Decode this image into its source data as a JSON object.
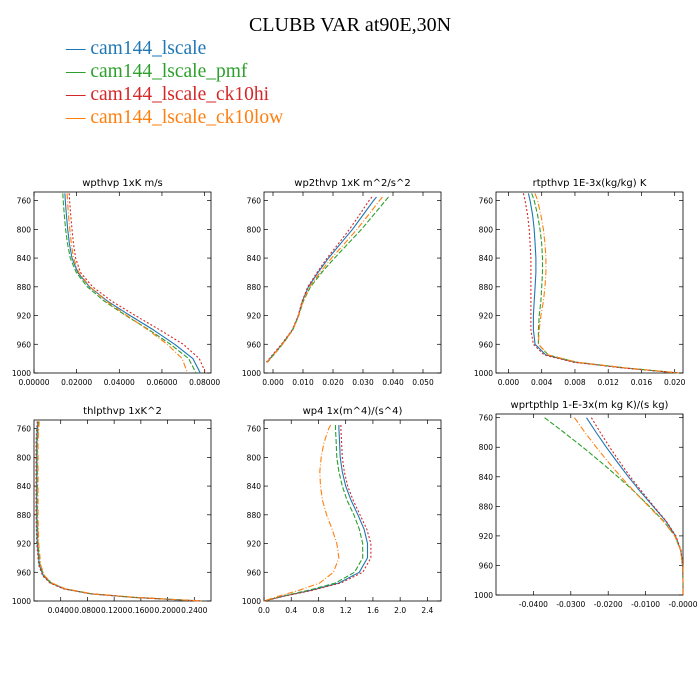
{
  "figure": {
    "title": "CLUBB VAR at90E,30N"
  },
  "colors": {
    "frame": "#000000",
    "ticks": "#000000"
  },
  "chart_data": [
    {
      "type": "line",
      "title": "wpthvp  1xK m/s",
      "xlim": [
        0,
        0.083
      ],
      "ylim": [
        1000,
        748
      ],
      "xticks": [
        "0.00000",
        "0.02000",
        "0.04000",
        "0.06000",
        "0.08000"
      ],
      "xtick_values": [
        0,
        0.02,
        0.04,
        0.06,
        0.08
      ],
      "yticks": [
        "760",
        "800",
        "840",
        "880",
        "920",
        "960",
        "1000"
      ],
      "ytick_values": [
        760,
        800,
        840,
        880,
        920,
        960,
        1000
      ],
      "y": [
        750,
        760,
        780,
        800,
        820,
        840,
        860,
        880,
        900,
        920,
        940,
        960,
        980,
        1000
      ],
      "series": [
        {
          "name": "cam144_lscale",
          "color": "#1f77b4",
          "values": [
            0.0145,
            0.0147,
            0.0152,
            0.0158,
            0.0166,
            0.0178,
            0.0205,
            0.026,
            0.0345,
            0.045,
            0.056,
            0.066,
            0.0745,
            0.078
          ]
        },
        {
          "name": "cam144_lscale_pmf",
          "color": "#2ca02c",
          "values": [
            0.0135,
            0.0137,
            0.0142,
            0.0148,
            0.0157,
            0.017,
            0.0198,
            0.025,
            0.033,
            0.043,
            0.054,
            0.064,
            0.0725,
            0.076
          ]
        },
        {
          "name": "cam144_lscale_ck10hi",
          "color": "#d62728",
          "values": [
            0.0165,
            0.0167,
            0.0172,
            0.0178,
            0.0185,
            0.0195,
            0.0218,
            0.0275,
            0.0365,
            0.0475,
            0.059,
            0.07,
            0.0775,
            0.0805
          ]
        },
        {
          "name": "cam144_lscale_ck10low",
          "color": "#ff7f0e",
          "values": [
            0.0155,
            0.0157,
            0.0162,
            0.0168,
            0.0175,
            0.0185,
            0.021,
            0.0262,
            0.034,
            0.0435,
            0.0535,
            0.0625,
            0.0695,
            0.072
          ]
        }
      ]
    },
    {
      "type": "line",
      "title": "wp2thvp  1xK m^2/s^2",
      "xlim": [
        -0.003,
        0.056
      ],
      "ylim": [
        1000,
        748
      ],
      "xticks": [
        "0.000",
        "0.010",
        "0.020",
        "0.030",
        "0.040",
        "0.050"
      ],
      "xtick_values": [
        0,
        0.01,
        0.02,
        0.03,
        0.04,
        0.05
      ],
      "yticks": [
        "760",
        "800",
        "840",
        "880",
        "920",
        "960",
        "1000"
      ],
      "ytick_values": [
        760,
        800,
        840,
        880,
        920,
        960,
        1000
      ],
      "y": [
        755,
        760,
        780,
        800,
        820,
        840,
        860,
        880,
        900,
        920,
        940,
        960,
        975,
        985
      ],
      "series": [
        {
          "name": "cam144_lscale",
          "color": "#1f77b4",
          "values": [
            0.0345,
            0.0335,
            0.03,
            0.0265,
            0.0225,
            0.0185,
            0.015,
            0.0118,
            0.0098,
            0.0085,
            0.0065,
            0.003,
            0.0,
            -0.002
          ]
        },
        {
          "name": "cam144_lscale_pmf",
          "color": "#2ca02c",
          "values": [
            0.0385,
            0.0375,
            0.0335,
            0.0295,
            0.025,
            0.0205,
            0.0163,
            0.0125,
            0.0101,
            0.0086,
            0.0066,
            0.0032,
            0.0002,
            -0.0018
          ]
        },
        {
          "name": "cam144_lscale_ck10hi",
          "color": "#d62728",
          "values": [
            0.033,
            0.032,
            0.0288,
            0.0255,
            0.0218,
            0.018,
            0.0147,
            0.0116,
            0.0097,
            0.0084,
            0.0064,
            0.0028,
            -0.0002,
            -0.0022
          ]
        },
        {
          "name": "cam144_lscale_ck10low",
          "color": "#ff7f0e",
          "values": [
            0.0365,
            0.0355,
            0.0318,
            0.028,
            0.0238,
            0.0195,
            0.0157,
            0.0122,
            0.01,
            0.0086,
            0.0066,
            0.0031,
            0.0001,
            -0.0019
          ]
        }
      ]
    },
    {
      "type": "line",
      "title": "rtpthvp  1E-3x(kg/kg) K",
      "xlim": [
        -0.0015,
        0.021
      ],
      "ylim": [
        1000,
        748
      ],
      "xticks": [
        "0.000",
        "0.004",
        "0.008",
        "0.012",
        "0.016",
        "0.020"
      ],
      "xtick_values": [
        0,
        0.004,
        0.008,
        0.012,
        0.016,
        0.02
      ],
      "yticks": [
        "760",
        "800",
        "840",
        "880",
        "920",
        "960",
        "1000"
      ],
      "ytick_values": [
        760,
        800,
        840,
        880,
        920,
        960,
        1000
      ],
      "y": [
        750,
        760,
        780,
        800,
        820,
        840,
        860,
        880,
        900,
        920,
        940,
        960,
        975,
        985,
        993,
        1000
      ],
      "series": [
        {
          "name": "cam144_lscale",
          "color": "#1f77b4",
          "values": [
            0.0024,
            0.0026,
            0.0029,
            0.0031,
            0.0032,
            0.0033,
            0.0033,
            0.0032,
            0.0031,
            0.003,
            0.003,
            0.0032,
            0.0045,
            0.008,
            0.014,
            0.0205
          ]
        },
        {
          "name": "cam144_lscale_pmf",
          "color": "#2ca02c",
          "values": [
            0.0028,
            0.0031,
            0.0035,
            0.0038,
            0.004,
            0.0041,
            0.0041,
            0.004,
            0.0039,
            0.0037,
            0.0036,
            0.0036,
            0.0048,
            0.0082,
            0.0142,
            0.0205
          ]
        },
        {
          "name": "cam144_lscale_ck10hi",
          "color": "#d62728",
          "values": [
            0.0018,
            0.002,
            0.0023,
            0.0025,
            0.0026,
            0.0027,
            0.0027,
            0.0027,
            0.0027,
            0.0027,
            0.0027,
            0.003,
            0.0043,
            0.0078,
            0.0138,
            0.0205
          ]
        },
        {
          "name": "cam144_lscale_ck10low",
          "color": "#ff7f0e",
          "values": [
            0.0032,
            0.0035,
            0.0039,
            0.0042,
            0.0044,
            0.0045,
            0.0045,
            0.0044,
            0.0042,
            0.0039,
            0.0037,
            0.0036,
            0.0048,
            0.0082,
            0.0142,
            0.0205
          ]
        }
      ]
    },
    {
      "type": "line",
      "title": "thlpthvp  1xK^2",
      "xlim": [
        0,
        0.265
      ],
      "ylim": [
        1000,
        748
      ],
      "xticks": [
        "0.0400",
        "0.0800",
        "0.1200",
        "0.1600",
        "0.2000",
        "0.2400"
      ],
      "xtick_values": [
        0.04,
        0.08,
        0.12,
        0.16,
        0.2,
        0.24
      ],
      "yticks": [
        "760",
        "800",
        "840",
        "880",
        "920",
        "960",
        "1000"
      ],
      "ytick_values": [
        760,
        800,
        840,
        880,
        920,
        960,
        1000
      ],
      "y": [
        750,
        760,
        780,
        800,
        840,
        880,
        920,
        950,
        965,
        975,
        983,
        990,
        995,
        1000
      ],
      "series": [
        {
          "name": "cam144_lscale",
          "color": "#1f77b4",
          "values": [
            0.006,
            0.005,
            0.004,
            0.004,
            0.004,
            0.004,
            0.005,
            0.008,
            0.014,
            0.025,
            0.045,
            0.085,
            0.15,
            0.25
          ]
        },
        {
          "name": "cam144_lscale_pmf",
          "color": "#2ca02c",
          "values": [
            0.007,
            0.006,
            0.005,
            0.005,
            0.005,
            0.005,
            0.006,
            0.009,
            0.015,
            0.026,
            0.046,
            0.086,
            0.151,
            0.251
          ]
        },
        {
          "name": "cam144_lscale_ck10hi",
          "color": "#d62728",
          "values": [
            0.005,
            0.004,
            0.003,
            0.003,
            0.003,
            0.003,
            0.004,
            0.007,
            0.013,
            0.024,
            0.044,
            0.084,
            0.149,
            0.249
          ]
        },
        {
          "name": "cam144_lscale_ck10low",
          "color": "#ff7f0e",
          "values": [
            0.008,
            0.007,
            0.006,
            0.006,
            0.006,
            0.006,
            0.007,
            0.01,
            0.016,
            0.027,
            0.047,
            0.087,
            0.152,
            0.252
          ]
        }
      ]
    },
    {
      "type": "line",
      "title": "wp4  1x(m^4)/(s^4)",
      "xlim": [
        0,
        2.6
      ],
      "ylim": [
        1000,
        748
      ],
      "xticks": [
        "0.0",
        "0.4",
        "0.8",
        "1.2",
        "1.6",
        "2.0",
        "2.4"
      ],
      "xtick_values": [
        0,
        0.4,
        0.8,
        1.2,
        1.6,
        2.0,
        2.4
      ],
      "yticks": [
        "760",
        "800",
        "840",
        "880",
        "920",
        "960",
        "1000"
      ],
      "ytick_values": [
        760,
        800,
        840,
        880,
        920,
        960,
        1000
      ],
      "y": [
        755,
        760,
        780,
        800,
        820,
        840,
        860,
        880,
        900,
        920,
        940,
        960,
        975,
        985,
        993,
        1000
      ],
      "series": [
        {
          "name": "cam144_lscale",
          "color": "#1f77b4",
          "values": [
            1.1,
            1.1,
            1.11,
            1.12,
            1.15,
            1.2,
            1.28,
            1.38,
            1.47,
            1.52,
            1.52,
            1.4,
            1.1,
            0.7,
            0.3,
            0.0
          ]
        },
        {
          "name": "cam144_lscale_pmf",
          "color": "#2ca02c",
          "values": [
            1.05,
            1.05,
            1.06,
            1.07,
            1.1,
            1.15,
            1.22,
            1.32,
            1.4,
            1.45,
            1.45,
            1.33,
            1.05,
            0.66,
            0.28,
            0.0
          ]
        },
        {
          "name": "cam144_lscale_ck10hi",
          "color": "#d62728",
          "values": [
            1.13,
            1.13,
            1.14,
            1.15,
            1.18,
            1.23,
            1.31,
            1.41,
            1.51,
            1.57,
            1.57,
            1.45,
            1.13,
            0.72,
            0.31,
            0.0
          ]
        },
        {
          "name": "cam144_lscale_ck10low",
          "color": "#ff7f0e",
          "values": [
            0.98,
            0.95,
            0.88,
            0.84,
            0.82,
            0.83,
            0.86,
            0.92,
            1.0,
            1.07,
            1.1,
            1.02,
            0.82,
            0.52,
            0.22,
            0.0
          ]
        }
      ]
    },
    {
      "type": "line",
      "title": "wprtpthlp  1-E-3x(m kg K)/(s kg)",
      "xlim": [
        -0.05,
        0.0
      ],
      "ylim": [
        1000,
        755
      ],
      "xticks": [
        "-0.0400",
        "-0.0300",
        "-0.0200",
        "-0.0100",
        "-0.0000"
      ],
      "xtick_values": [
        -0.04,
        -0.03,
        -0.02,
        -0.01,
        0.0
      ],
      "yticks": [
        "760",
        "800",
        "840",
        "880",
        "920",
        "960",
        "1000"
      ],
      "ytick_values": [
        760,
        800,
        840,
        880,
        920,
        960,
        1000
      ],
      "y": [
        760,
        780,
        800,
        820,
        840,
        860,
        880,
        900,
        920,
        940,
        960,
        980,
        1000
      ],
      "series": [
        {
          "name": "cam144_lscale",
          "color": "#1f77b4",
          "values": [
            -0.0258,
            -0.0232,
            -0.0205,
            -0.0176,
            -0.0146,
            -0.0114,
            -0.008,
            -0.0046,
            -0.002,
            -0.0006,
            -0.0001,
            0.0,
            0.0
          ]
        },
        {
          "name": "cam144_lscale_pmf",
          "color": "#2ca02c",
          "values": [
            -0.037,
            -0.0318,
            -0.0268,
            -0.022,
            -0.0174,
            -0.013,
            -0.009,
            -0.0052,
            -0.0022,
            -0.0006,
            -0.0001,
            0.0,
            0.0
          ]
        },
        {
          "name": "cam144_lscale_ck10hi",
          "color": "#d62728",
          "values": [
            -0.0245,
            -0.0221,
            -0.0196,
            -0.0169,
            -0.0141,
            -0.011,
            -0.0078,
            -0.0045,
            -0.0019,
            -0.0005,
            -0.0001,
            0.0,
            0.0
          ]
        },
        {
          "name": "cam144_lscale_ck10low",
          "color": "#ff7f0e",
          "values": [
            -0.029,
            -0.0262,
            -0.0232,
            -0.02,
            -0.0166,
            -0.013,
            -0.0092,
            -0.0053,
            -0.0022,
            -0.0006,
            -0.0001,
            0.0,
            0.0
          ]
        }
      ]
    }
  ]
}
